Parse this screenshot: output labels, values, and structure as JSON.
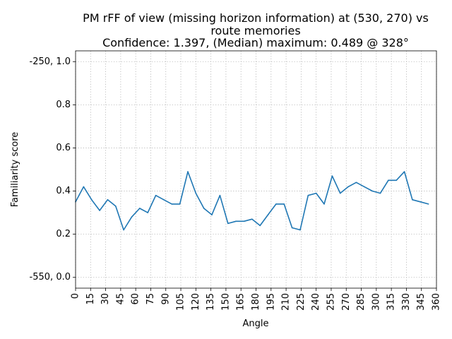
{
  "chart_data": {
    "type": "line",
    "title_lines": [
      "PM rFF of view (missing horizon information) at (530, 270) vs",
      "route memories",
      "Confidence: 1.397, (Median) maximum: 0.489 @ 328°"
    ],
    "xlabel": "Angle",
    "ylabel": "Familiarity score",
    "xlim": [
      0,
      360
    ],
    "ylim": [
      -0.05,
      1.05
    ],
    "x_ticks": [
      0,
      15,
      30,
      45,
      60,
      75,
      90,
      105,
      120,
      135,
      150,
      165,
      180,
      195,
      210,
      225,
      240,
      255,
      270,
      285,
      300,
      315,
      330,
      345,
      360
    ],
    "y_ticks": [
      {
        "value": 0.0,
        "label": "-550, 0.0"
      },
      {
        "value": 0.2,
        "label": "0.2"
      },
      {
        "value": 0.4,
        "label": "0.4"
      },
      {
        "value": 0.6,
        "label": "0.6"
      },
      {
        "value": 0.8,
        "label": "0.8"
      },
      {
        "value": 1.0,
        "label": "-250, 1.0"
      }
    ],
    "grid": true,
    "series": [
      {
        "color": "#1f77b4",
        "x": [
          0,
          8,
          16,
          24,
          32,
          40,
          48,
          56,
          64,
          72,
          80,
          88,
          96,
          104,
          112,
          120,
          128,
          136,
          144,
          152,
          160,
          168,
          176,
          184,
          192,
          200,
          208,
          216,
          224,
          232,
          240,
          248,
          256,
          264,
          272,
          280,
          288,
          296,
          304,
          312,
          320,
          328,
          336,
          344,
          352
        ],
        "y": [
          0.35,
          0.42,
          0.36,
          0.31,
          0.36,
          0.33,
          0.22,
          0.28,
          0.32,
          0.3,
          0.38,
          0.36,
          0.34,
          0.34,
          0.49,
          0.39,
          0.32,
          0.29,
          0.38,
          0.25,
          0.26,
          0.26,
          0.27,
          0.24,
          0.29,
          0.34,
          0.34,
          0.23,
          0.22,
          0.38,
          0.39,
          0.34,
          0.47,
          0.39,
          0.42,
          0.44,
          0.42,
          0.4,
          0.39,
          0.45,
          0.45,
          0.49,
          0.36,
          0.35,
          0.34
        ]
      }
    ]
  }
}
